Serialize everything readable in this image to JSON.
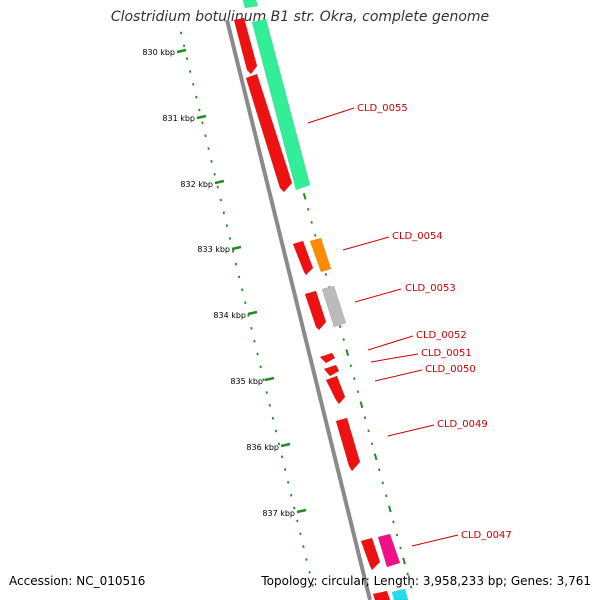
{
  "title": "Clostridium botulinum B1 str. Okra, complete genome",
  "footer": {
    "accession": "Accession: NC_010516",
    "stats": "Topology: circular; Length: 3,958,233 bp; Genes: 3,761"
  },
  "scale_labels": [
    "830 kbp",
    "831 kbp",
    "832 kbp",
    "833 kbp",
    "834 kbp",
    "835 kbp",
    "836 kbp",
    "837 kbp"
  ],
  "gene_labels": [
    "CLD_0055",
    "CLD_0054",
    "CLD_0053",
    "CLD_0052",
    "CLD_0051",
    "CLD_0050",
    "CLD_0049",
    "CLD_0047"
  ],
  "colors": {
    "backbone": "#8a8a8a",
    "cds": "#ee1111",
    "gene_0055": "#33ee99",
    "gene_0054": "#ff8c00",
    "gene_0053": "#bbbbbb",
    "gene_0047": "#ee1188",
    "gene_next": "#22ddee",
    "ticks": "#228b22",
    "label_line": "#cc0000"
  }
}
